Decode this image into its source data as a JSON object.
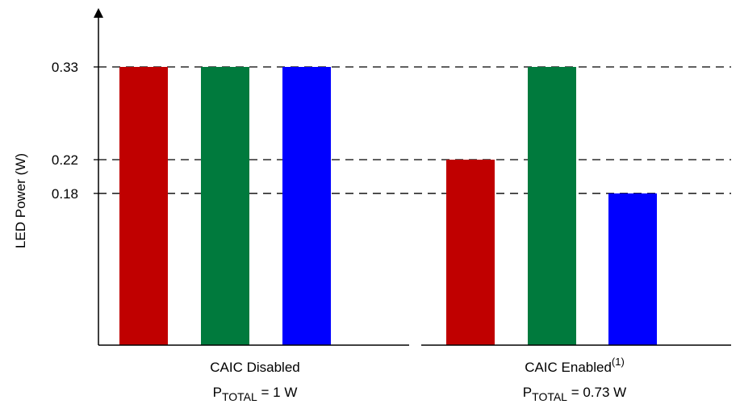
{
  "chart_data": {
    "type": "bar",
    "ylabel": "LED Power (W)",
    "y_ticks": [
      "0.33",
      "0.22",
      "0.18"
    ],
    "y_tick_values": [
      0.33,
      0.22,
      0.18
    ],
    "ylim": [
      0,
      0.33
    ],
    "grid": "dashed lines at tick values",
    "groups": [
      {
        "label": "CAIC Disabled",
        "label_sup": "",
        "total_prefix": "P",
        "total_sub": "TOTAL",
        "total_value": " = 1 W",
        "values": [
          0.33,
          0.33,
          0.33
        ],
        "colors": [
          "#c00000",
          "#007a3d",
          "#0000ff"
        ]
      },
      {
        "label": "CAIC Enabled",
        "label_sup": "(1)",
        "total_prefix": "P",
        "total_sub": "TOTAL",
        "total_value": " = 0.73 W",
        "values": [
          0.22,
          0.33,
          0.18
        ],
        "colors": [
          "#c00000",
          "#007a3d",
          "#0000ff"
        ]
      }
    ]
  }
}
